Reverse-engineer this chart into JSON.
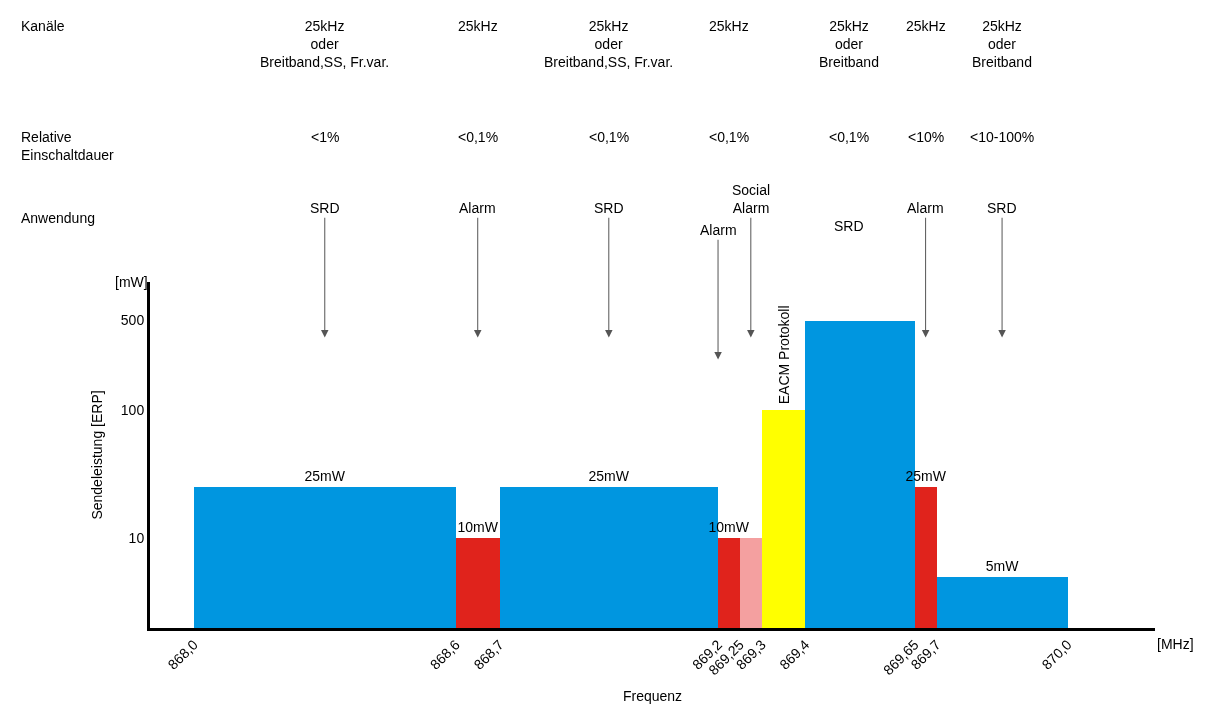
{
  "chart_data": {
    "type": "histogram",
    "xlabel": "Frequenz",
    "ylabel": "Sendeleistung [ERP]",
    "bins": [
      868.0,
      868.6,
      868.7,
      869.2,
      869.25,
      869.3,
      869.4,
      869.65,
      869.7,
      870.0
    ],
    "values": [
      25,
      10,
      25,
      10,
      10,
      100,
      500,
      25,
      5
    ],
    "colors": [
      "#0096e0",
      "#e0231c",
      "#0096e0",
      "#e0231c",
      "#f4a0a0",
      "#ffff00",
      "#0096e0",
      "#e0231c",
      "#0096e0"
    ],
    "value_labels": [
      "25mW",
      "10mW",
      "25mW",
      "10mW",
      null,
      null,
      null,
      "25mW",
      "5mW"
    ],
    "log": "y",
    "xlim": [
      867.9,
      870.2
    ],
    "xticks": [
      {
        "value": 868.0,
        "label": "868,0"
      },
      {
        "value": 868.6,
        "label": "868,6"
      },
      {
        "value": 868.7,
        "label": "868,7"
      },
      {
        "value": 869.2,
        "label": "869,2"
      },
      {
        "value": 869.25,
        "label": "869,25"
      },
      {
        "value": 869.3,
        "label": "869,3"
      },
      {
        "value": 869.4,
        "label": "869,4"
      },
      {
        "value": 869.65,
        "label": "869,65"
      },
      {
        "value": 869.7,
        "label": "869,7"
      },
      {
        "value": 870.0,
        "label": "870,0"
      }
    ],
    "ylim": [
      2,
      1000
    ],
    "yticks": [
      10,
      100,
      500
    ],
    "annotations": [
      "Kanäle",
      "Relative\nEinschaltdauer",
      "Anwendung",
      "25kHz\noder\nBreitband,SS, Fr.var.",
      "25kHz",
      "25kHz\noder\nBreitband,SS, Fr.var.",
      "25kHz",
      "25kHz\noder\nBreitband",
      "25kHz",
      "25kHz\noder\nBreitband",
      "<1%",
      "<0,1%",
      "<0,1%",
      "<0,1%",
      "<0,1%",
      "<10%",
      "<10-100%",
      "SRD",
      "Alarm",
      "SRD",
      "Alarm",
      "Social\nAlarm",
      "SRD",
      "Alarm",
      "SRD",
      "EACM Protokoll",
      "[MHz]",
      "[mW]"
    ]
  }
}
